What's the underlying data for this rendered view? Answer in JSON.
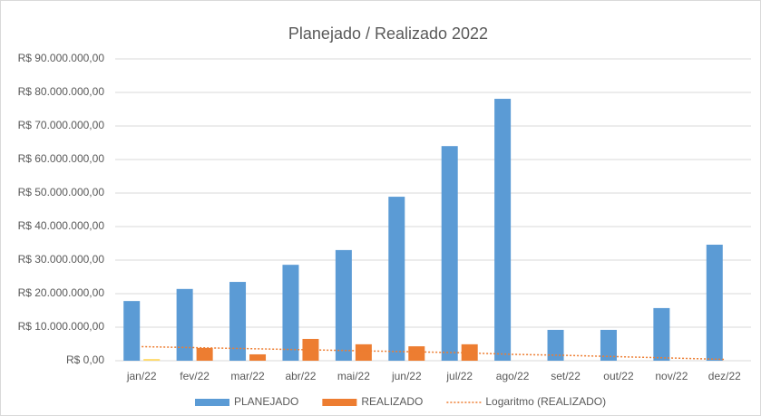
{
  "chart_data": {
    "type": "bar",
    "title": "Planejado / Realizado 2022",
    "categories": [
      "jan/22",
      "fev/22",
      "mar/22",
      "abr/22",
      "mai/22",
      "jun/22",
      "jul/22",
      "ago/22",
      "set/22",
      "out/22",
      "nov/22",
      "dez/22"
    ],
    "series": [
      {
        "name": "PLANEJADO",
        "color": "#5b9bd5",
        "values": [
          17800000,
          21400000,
          23500000,
          28600000,
          33000000,
          48900000,
          64000000,
          78100000,
          9200000,
          9200000,
          15700000,
          34600000
        ]
      },
      {
        "name": "REALIZADO",
        "color": "#ed7d31",
        "colors": [
          "#ffd966",
          "#ed7d31",
          "#ed7d31",
          "#ed7d31",
          "#ed7d31",
          "#ed7d31",
          "#ed7d31",
          "#ed7d31",
          "#ed7d31",
          "#ed7d31",
          "#ed7d31",
          "#ed7d31"
        ],
        "values": [
          500000,
          3800000,
          1900000,
          6500000,
          4900000,
          4300000,
          4900000,
          0,
          0,
          0,
          0,
          0
        ]
      }
    ],
    "trendline": {
      "name": "Logaritmo (REALIZADO)",
      "color": "#ed7d31",
      "values": [
        4200000,
        3900000,
        3600000,
        3300000,
        3000000,
        2700000,
        2400000,
        1900000,
        1600000,
        1200000,
        800000,
        400000
      ]
    },
    "ylim": [
      0,
      90000000
    ],
    "yticks": [
      {
        "value": 0,
        "label": "R$ 0,00"
      },
      {
        "value": 10000000,
        "label": "R$ 10.000.000,00"
      },
      {
        "value": 20000000,
        "label": "R$ 20.000.000,00"
      },
      {
        "value": 30000000,
        "label": "R$ 30.000.000,00"
      },
      {
        "value": 40000000,
        "label": "R$ 40.000.000,00"
      },
      {
        "value": 50000000,
        "label": "R$ 50.000.000,00"
      },
      {
        "value": 60000000,
        "label": "R$ 60.000.000,00"
      },
      {
        "value": 70000000,
        "label": "R$ 70.000.000,00"
      },
      {
        "value": 80000000,
        "label": "R$ 80.000.000,00"
      },
      {
        "value": 90000000,
        "label": "R$ 90.000.000,00"
      }
    ],
    "grid": true,
    "legend": "bottom"
  }
}
